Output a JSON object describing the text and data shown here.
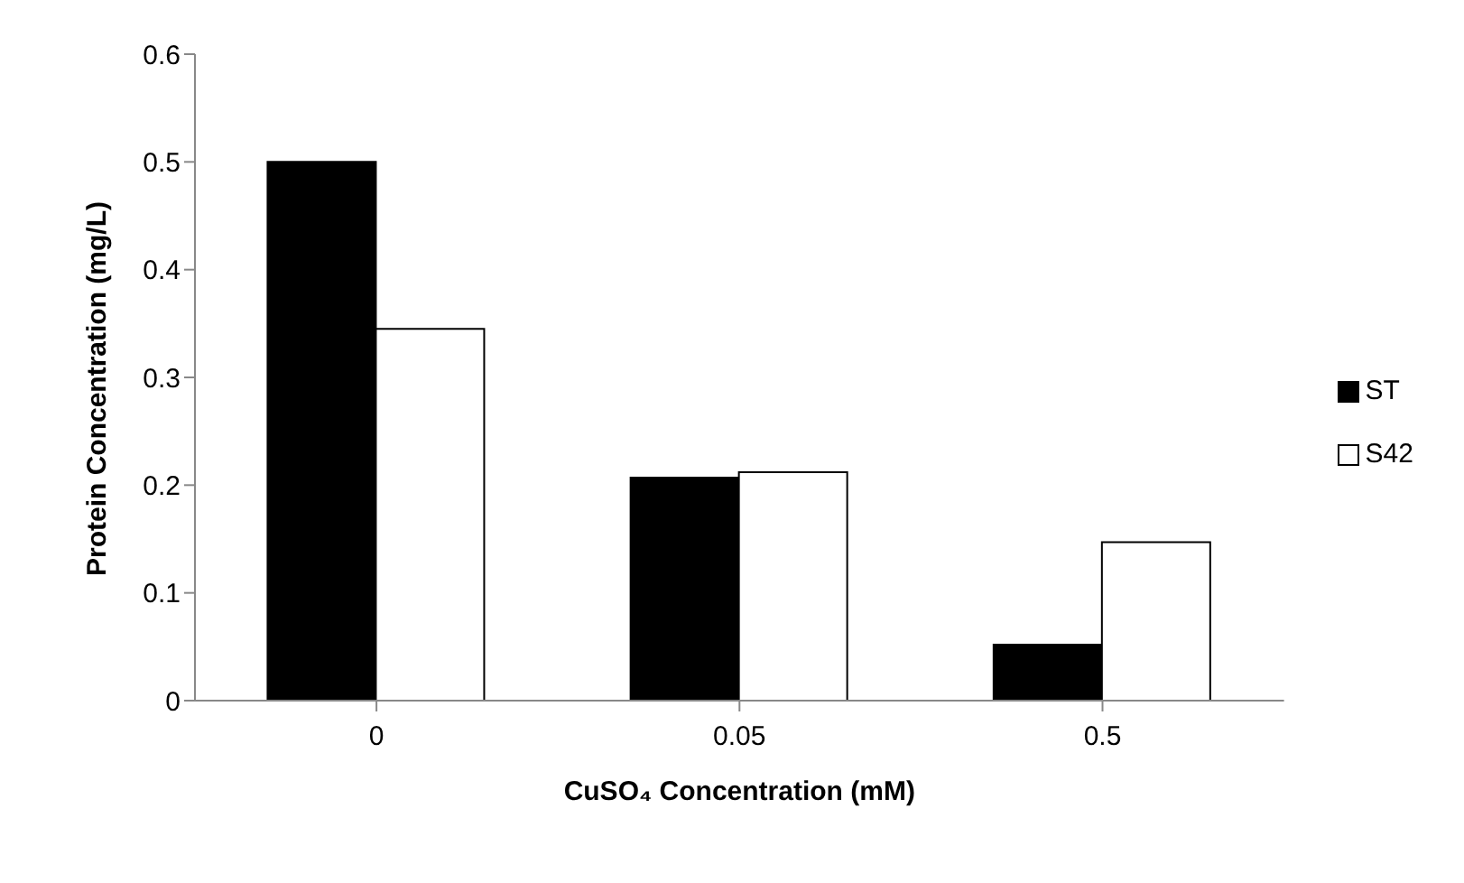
{
  "chart_data": {
    "type": "bar",
    "xlabel": "CuSO₄ Concentration (mM)",
    "ylabel": "Protein Concentration (mg/L)",
    "categories": [
      "0",
      "0.05",
      "0.5"
    ],
    "series": [
      {
        "name": "ST",
        "color": "#000000",
        "values": [
          0.5,
          0.207,
          0.052
        ]
      },
      {
        "name": "S42",
        "color": "#ffffff",
        "values": [
          0.345,
          0.212,
          0.147
        ]
      }
    ],
    "ylim": [
      0,
      0.6
    ],
    "yticks": [
      {
        "value": 0,
        "label": "0"
      },
      {
        "value": 0.1,
        "label": "0.1"
      },
      {
        "value": 0.2,
        "label": "0.2"
      },
      {
        "value": 0.3,
        "label": "0.3"
      },
      {
        "value": 0.4,
        "label": "0.4"
      },
      {
        "value": 0.5,
        "label": "0.5"
      },
      {
        "value": 0.6,
        "label": "0.6"
      }
    ],
    "grid": false,
    "legend": "right"
  }
}
